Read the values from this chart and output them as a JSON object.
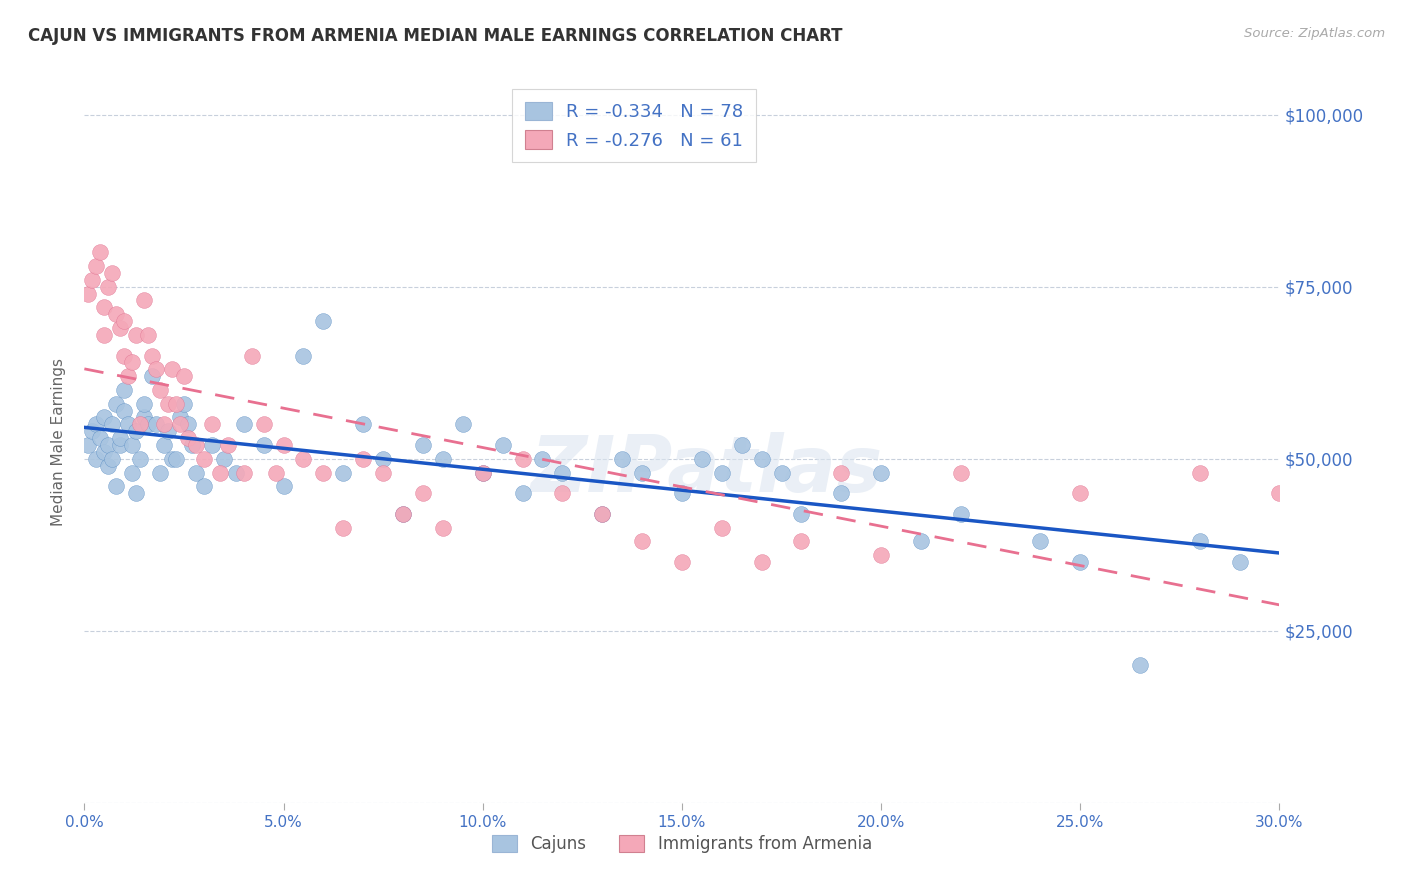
{
  "title": "CAJUN VS IMMIGRANTS FROM ARMENIA MEDIAN MALE EARNINGS CORRELATION CHART",
  "source_text": "Source: ZipAtlas.com",
  "ylabel": "Median Male Earnings",
  "xlim": [
    0.0,
    0.3
  ],
  "ylim": [
    0,
    105000
  ],
  "yticks": [
    0,
    25000,
    50000,
    75000,
    100000
  ],
  "xticks": [
    0.0,
    0.05,
    0.1,
    0.15,
    0.2,
    0.25,
    0.3
  ],
  "xtick_labels": [
    "0.0%",
    "5.0%",
    "10.0%",
    "15.0%",
    "20.0%",
    "25.0%",
    "30.0%"
  ],
  "ytick_labels": [
    "",
    "$25,000",
    "$50,000",
    "$75,000",
    "$100,000"
  ],
  "cajun_color": "#a8c4e0",
  "armenia_color": "#f4a8b8",
  "cajun_edge_color": "#5b8ec4",
  "armenia_edge_color": "#e07090",
  "cajun_line_color": "#1a56c4",
  "armenia_line_color": "#e87090",
  "cajun_R": -0.334,
  "cajun_N": 78,
  "armenia_R": -0.276,
  "armenia_N": 61,
  "cajun_scatter_x": [
    0.001,
    0.002,
    0.003,
    0.003,
    0.004,
    0.005,
    0.005,
    0.006,
    0.006,
    0.007,
    0.007,
    0.008,
    0.008,
    0.009,
    0.009,
    0.01,
    0.01,
    0.011,
    0.012,
    0.012,
    0.013,
    0.013,
    0.014,
    0.015,
    0.015,
    0.016,
    0.017,
    0.018,
    0.019,
    0.02,
    0.021,
    0.022,
    0.023,
    0.024,
    0.025,
    0.026,
    0.027,
    0.028,
    0.03,
    0.032,
    0.035,
    0.038,
    0.04,
    0.045,
    0.05,
    0.055,
    0.06,
    0.065,
    0.07,
    0.075,
    0.08,
    0.085,
    0.09,
    0.095,
    0.1,
    0.105,
    0.11,
    0.115,
    0.12,
    0.13,
    0.135,
    0.14,
    0.15,
    0.155,
    0.16,
    0.165,
    0.17,
    0.175,
    0.18,
    0.19,
    0.2,
    0.21,
    0.22,
    0.24,
    0.25,
    0.265,
    0.28,
    0.29
  ],
  "cajun_scatter_y": [
    52000,
    54000,
    55000,
    50000,
    53000,
    51000,
    56000,
    52000,
    49000,
    50000,
    55000,
    58000,
    46000,
    52000,
    53000,
    57000,
    60000,
    55000,
    48000,
    52000,
    54000,
    45000,
    50000,
    56000,
    58000,
    55000,
    62000,
    55000,
    48000,
    52000,
    54000,
    50000,
    50000,
    56000,
    58000,
    55000,
    52000,
    48000,
    46000,
    52000,
    50000,
    48000,
    55000,
    52000,
    46000,
    65000,
    70000,
    48000,
    55000,
    50000,
    42000,
    52000,
    50000,
    55000,
    48000,
    52000,
    45000,
    50000,
    48000,
    42000,
    50000,
    48000,
    45000,
    50000,
    48000,
    52000,
    50000,
    48000,
    42000,
    45000,
    48000,
    38000,
    42000,
    38000,
    35000,
    20000,
    38000,
    35000
  ],
  "armenia_scatter_x": [
    0.001,
    0.002,
    0.003,
    0.004,
    0.005,
    0.005,
    0.006,
    0.007,
    0.008,
    0.009,
    0.01,
    0.01,
    0.011,
    0.012,
    0.013,
    0.014,
    0.015,
    0.016,
    0.017,
    0.018,
    0.019,
    0.02,
    0.021,
    0.022,
    0.023,
    0.024,
    0.025,
    0.026,
    0.028,
    0.03,
    0.032,
    0.034,
    0.036,
    0.04,
    0.042,
    0.045,
    0.048,
    0.05,
    0.055,
    0.06,
    0.065,
    0.07,
    0.075,
    0.08,
    0.085,
    0.09,
    0.1,
    0.11,
    0.12,
    0.13,
    0.14,
    0.15,
    0.16,
    0.17,
    0.18,
    0.19,
    0.2,
    0.22,
    0.25,
    0.28,
    0.3
  ],
  "armenia_scatter_y": [
    74000,
    76000,
    78000,
    80000,
    72000,
    68000,
    75000,
    77000,
    71000,
    69000,
    65000,
    70000,
    62000,
    64000,
    68000,
    55000,
    73000,
    68000,
    65000,
    63000,
    60000,
    55000,
    58000,
    63000,
    58000,
    55000,
    62000,
    53000,
    52000,
    50000,
    55000,
    48000,
    52000,
    48000,
    65000,
    55000,
    48000,
    52000,
    50000,
    48000,
    40000,
    50000,
    48000,
    42000,
    45000,
    40000,
    48000,
    50000,
    45000,
    42000,
    38000,
    35000,
    40000,
    35000,
    38000,
    48000,
    36000,
    48000,
    45000,
    48000,
    45000
  ],
  "watermark_text": "ZIPatlas",
  "background_color": "#ffffff",
  "grid_color": "#c8d0dc",
  "title_color": "#333333",
  "tick_label_color": "#4472c4"
}
